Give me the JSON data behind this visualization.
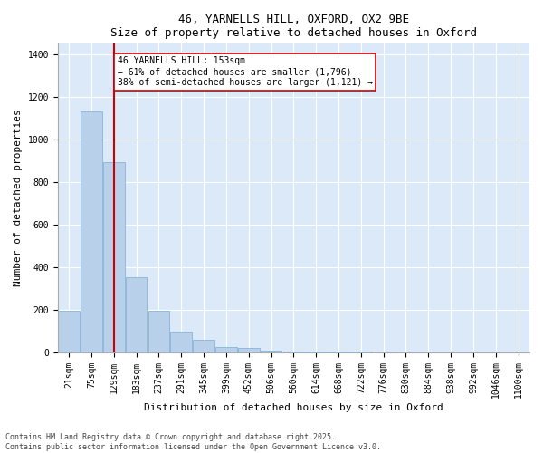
{
  "title1": "46, YARNELLS HILL, OXFORD, OX2 9BE",
  "title2": "Size of property relative to detached houses in Oxford",
  "xlabel": "Distribution of detached houses by size in Oxford",
  "ylabel": "Number of detached properties",
  "bar_values": [
    193,
    1130,
    893,
    350,
    193,
    97,
    60,
    22,
    18,
    8,
    3,
    2,
    1,
    1,
    0,
    0,
    0,
    0,
    0,
    0,
    0
  ],
  "bin_labels": [
    "21sqm",
    "75sqm",
    "129sqm",
    "183sqm",
    "237sqm",
    "291sqm",
    "345sqm",
    "399sqm",
    "452sqm",
    "506sqm",
    "560sqm",
    "614sqm",
    "668sqm",
    "722sqm",
    "776sqm",
    "830sqm",
    "884sqm",
    "938sqm",
    "992sqm",
    "1046sqm",
    "1100sqm"
  ],
  "bar_color": "#b8d0ea",
  "bar_edge_color": "#7aacd4",
  "vline_x": 2,
  "vline_color": "#cc0000",
  "annotation_text": "46 YARNELLS HILL: 153sqm\n← 61% of detached houses are smaller (1,796)\n38% of semi-detached houses are larger (1,121) →",
  "annotation_box_color": "#ffffff",
  "annotation_box_edge": "#cc0000",
  "ylim": [
    0,
    1450
  ],
  "yticks": [
    0,
    200,
    400,
    600,
    800,
    1000,
    1200,
    1400
  ],
  "bg_color": "#dce9f8",
  "footnote": "Contains HM Land Registry data © Crown copyright and database right 2025.\nContains public sector information licensed under the Open Government Licence v3.0.",
  "title_fontsize": 9,
  "axis_label_fontsize": 8,
  "tick_fontsize": 7,
  "annotation_fontsize": 7,
  "footnote_fontsize": 6
}
